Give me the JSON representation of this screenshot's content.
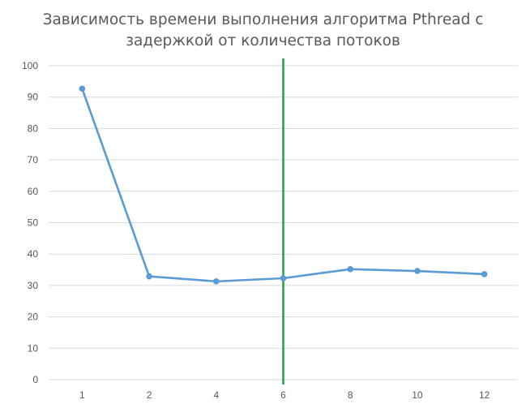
{
  "chart_data": {
    "type": "line",
    "title_lines": [
      "Зависимость времени выполнения алгоритма Pthread с",
      "задержкой от количества потоков"
    ],
    "categories": [
      "1",
      "2",
      "4",
      "6",
      "8",
      "10",
      "12"
    ],
    "series": [
      {
        "values": [
          92.7,
          32.9,
          31.3,
          32.3,
          35.2,
          34.6,
          33.6
        ],
        "color": "#5B9BD5"
      }
    ],
    "ylim": [
      0,
      100
    ],
    "yticks": [
      0,
      10,
      20,
      30,
      40,
      50,
      60,
      70,
      80,
      90,
      100
    ],
    "grid": true,
    "marker_line": {
      "at_category": "6",
      "color": "#22A64A"
    }
  }
}
